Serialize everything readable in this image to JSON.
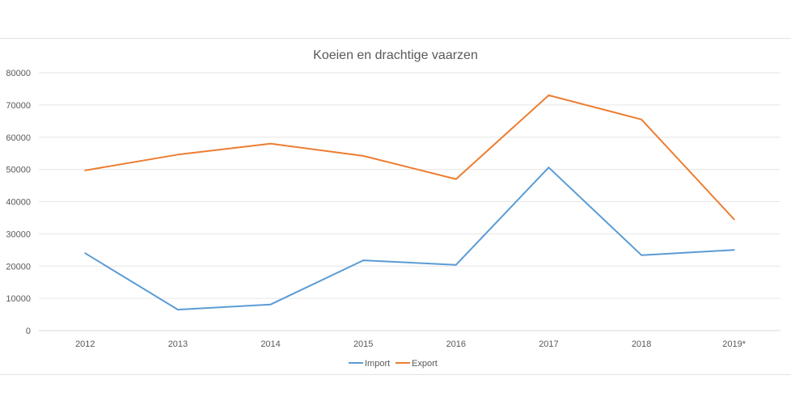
{
  "chart_data": {
    "type": "line",
    "title": "Koeien en drachtige vaarzen",
    "categories": [
      "2012",
      "2013",
      "2014",
      "2015",
      "2016",
      "2017",
      "2018",
      "2019*"
    ],
    "series": [
      {
        "name": "Import",
        "color": "#5b9bd5",
        "values": [
          24000,
          6500,
          8100,
          21800,
          20400,
          50600,
          23400,
          25000
        ]
      },
      {
        "name": "Export",
        "color": "#ed7d31",
        "values": [
          49700,
          54600,
          58000,
          54200,
          47000,
          73000,
          65500,
          34500
        ]
      }
    ],
    "ylim": [
      0,
      80000
    ],
    "yticks": [
      0,
      10000,
      20000,
      30000,
      40000,
      50000,
      60000,
      70000,
      80000
    ],
    "grid": true,
    "legend_position": "bottom"
  }
}
